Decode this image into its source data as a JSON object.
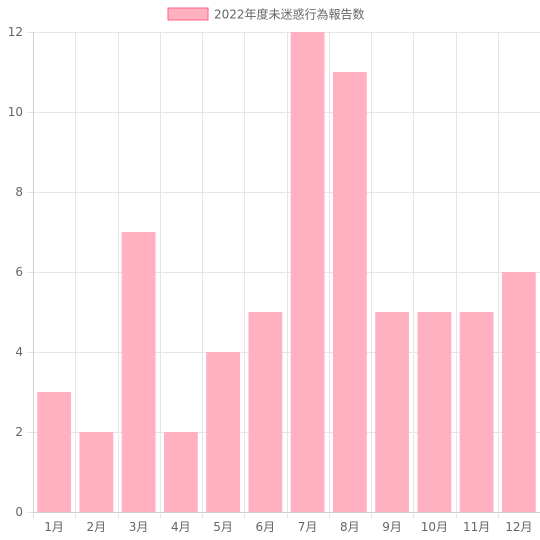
{
  "chart_data": {
    "type": "bar",
    "categories": [
      "1月",
      "2月",
      "3月",
      "4月",
      "5月",
      "6月",
      "7月",
      "8月",
      "9月",
      "10月",
      "11月",
      "12月"
    ],
    "series": [
      {
        "name": "2022年度未迷惑行為報告数",
        "values": [
          3,
          2,
          7,
          2,
          4,
          5,
          12,
          11,
          5,
          5,
          5,
          6
        ],
        "color": "#ffb1c1",
        "border_color": "#ff6384"
      }
    ],
    "y_ticks": [
      "0",
      "2",
      "4",
      "6",
      "8",
      "10",
      "12"
    ],
    "ylim": [
      0,
      12
    ],
    "grid": true,
    "legend_position": "top"
  }
}
